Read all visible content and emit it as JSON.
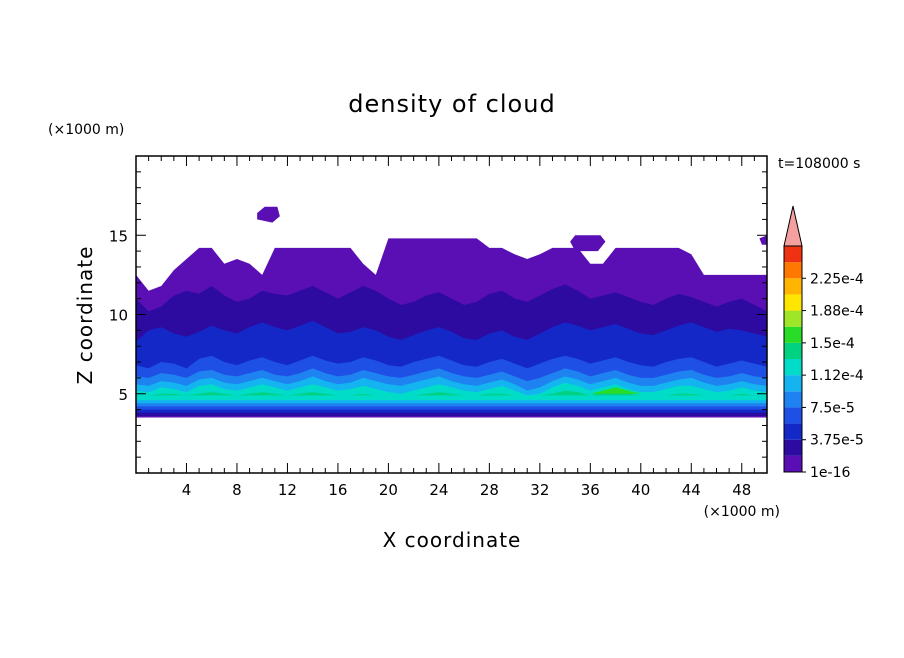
{
  "chart_data": {
    "type": "heatmap",
    "title": "density of cloud",
    "xlabel": "X coordinate",
    "ylabel": "Z coordinate",
    "x_unit": "(×1000 m)",
    "y_unit": "(×1000 m)",
    "time_label": "t=108000 s",
    "xlim": [
      0,
      50
    ],
    "ylim": [
      0,
      20
    ],
    "x_ticks": [
      4,
      8,
      12,
      16,
      20,
      24,
      28,
      32,
      36,
      40,
      44,
      48
    ],
    "y_ticks": [
      5,
      10,
      15
    ],
    "grid": false,
    "colorbar": {
      "levels": [
        1e-16,
        1.875e-05,
        3.75e-05,
        5.625e-05,
        7.5e-05,
        9.375e-05,
        0.0001125,
        0.00013125,
        0.00015,
        0.00016875,
        0.0001875,
        0.00020625,
        0.000225,
        0.00024375
      ],
      "tick_labels": [
        "1e-16",
        "3.75e-5",
        "7.5e-5",
        "1.12e-4",
        "1.5e-4",
        "1.88e-4",
        "2.25e-4"
      ],
      "colors": [
        "#5a0fb4",
        "#2d0aa0",
        "#1428c8",
        "#1e50e6",
        "#1e82f0",
        "#14b4f0",
        "#00dcc8",
        "#00d282",
        "#28dc28",
        "#a0e628",
        "#ffe600",
        "#ffb400",
        "#ff7800",
        "#f03214"
      ],
      "extend_top_color": "#f5a0a0"
    },
    "layers": [
      {
        "level": 0,
        "z_bottom": 3.5,
        "z_top": [
          12.5,
          11.5,
          11.8,
          12.8,
          13.5,
          14.2,
          14.2,
          13.2,
          13.5,
          13.2,
          12.5,
          14.2,
          14.2,
          14.2,
          14.2,
          14.2,
          14.2,
          14.2,
          13.2,
          12.5,
          14.8,
          14.8,
          14.8,
          14.8,
          14.8,
          14.8,
          14.8,
          14.8,
          14.2,
          14.2,
          13.8,
          13.5,
          13.8,
          14.2,
          14.2,
          14.2,
          13.2,
          13.2,
          14.2,
          14.2,
          14.2,
          14.2,
          14.2,
          14.2,
          13.8,
          12.5,
          12.5,
          12.5,
          12.5,
          12.5,
          12.5
        ]
      },
      {
        "level": 1,
        "z_bottom": 3.6,
        "z_top": [
          11.0,
          10.2,
          10.5,
          11.2,
          11.5,
          11.3,
          11.8,
          11.2,
          10.8,
          11.0,
          11.5,
          11.3,
          11.2,
          11.5,
          11.8,
          11.4,
          11.0,
          11.4,
          11.8,
          11.5,
          11.0,
          10.6,
          10.8,
          11.2,
          11.4,
          11.0,
          10.6,
          10.8,
          11.3,
          11.5,
          11.0,
          10.8,
          11.2,
          11.6,
          11.9,
          11.5,
          11.0,
          11.2,
          11.4,
          11.1,
          10.8,
          10.6,
          11.0,
          11.3,
          11.1,
          10.8,
          10.5,
          10.8,
          11.0,
          10.6,
          10.2
        ]
      },
      {
        "level": 2,
        "z_bottom": 3.8,
        "z_top": [
          8.3,
          9.0,
          9.2,
          8.8,
          8.6,
          8.9,
          9.3,
          9.0,
          8.8,
          9.2,
          9.5,
          9.2,
          9.0,
          9.3,
          9.6,
          9.2,
          8.8,
          8.9,
          9.2,
          9.0,
          8.6,
          8.4,
          8.7,
          9.0,
          9.2,
          8.9,
          8.5,
          8.4,
          8.8,
          9.0,
          8.6,
          8.4,
          8.8,
          9.2,
          9.5,
          9.3,
          9.0,
          9.2,
          9.4,
          9.1,
          8.8,
          8.7,
          9.0,
          9.3,
          9.5,
          9.2,
          8.9,
          9.1,
          9.0,
          8.8,
          8.6
        ]
      },
      {
        "level": 3,
        "z_bottom": 4.0,
        "z_top": [
          6.8,
          6.6,
          7.0,
          6.9,
          6.6,
          7.2,
          7.4,
          7.0,
          6.8,
          7.1,
          7.3,
          7.0,
          6.8,
          7.1,
          7.4,
          7.1,
          6.9,
          7.0,
          7.3,
          7.1,
          6.8,
          6.7,
          7.0,
          7.2,
          7.4,
          7.1,
          6.8,
          6.7,
          7.0,
          7.2,
          6.9,
          6.6,
          6.9,
          7.2,
          7.4,
          7.2,
          6.9,
          7.1,
          7.3,
          7.0,
          6.8,
          6.7,
          7.0,
          7.2,
          7.3,
          7.0,
          6.7,
          6.9,
          7.1,
          6.9,
          6.7
        ]
      },
      {
        "level": 4,
        "z_bottom": 4.2,
        "z_top": [
          6.1,
          6.0,
          6.3,
          6.2,
          6.0,
          6.4,
          6.5,
          6.2,
          6.1,
          6.3,
          6.5,
          6.2,
          6.1,
          6.3,
          6.6,
          6.3,
          6.1,
          6.2,
          6.5,
          6.3,
          6.1,
          6.0,
          6.2,
          6.4,
          6.6,
          6.3,
          6.1,
          6.0,
          6.2,
          6.4,
          6.1,
          5.8,
          6.0,
          6.3,
          6.6,
          6.4,
          6.1,
          6.3,
          6.5,
          6.2,
          6.0,
          6.0,
          6.2,
          6.4,
          6.5,
          6.2,
          6.0,
          6.1,
          6.3,
          6.1,
          6.0
        ]
      },
      {
        "level": 5,
        "z_bottom": 4.4,
        "z_top": [
          5.6,
          5.5,
          5.8,
          5.7,
          5.5,
          5.9,
          6.0,
          5.7,
          5.6,
          5.8,
          6.0,
          5.8,
          5.6,
          5.8,
          6.1,
          5.8,
          5.6,
          5.7,
          6.0,
          5.8,
          5.6,
          5.5,
          5.7,
          5.9,
          6.1,
          5.8,
          5.6,
          5.5,
          5.7,
          5.9,
          5.6,
          5.2,
          5.4,
          5.8,
          6.1,
          5.9,
          5.6,
          5.8,
          6.0,
          5.7,
          5.5,
          5.5,
          5.7,
          5.9,
          6.0,
          5.7,
          5.5,
          5.6,
          5.8,
          5.6,
          5.5
        ]
      },
      {
        "level": 6,
        "z_bottom": 4.6,
        "z_top": [
          5.2,
          5.1,
          5.4,
          5.3,
          5.1,
          5.5,
          5.6,
          5.3,
          5.2,
          5.4,
          5.6,
          5.4,
          5.2,
          5.4,
          5.6,
          5.4,
          5.2,
          5.3,
          5.5,
          5.3,
          5.1,
          5.0,
          5.2,
          5.4,
          5.6,
          5.4,
          5.2,
          5.1,
          5.3,
          5.5,
          5.2,
          4.9,
          5.0,
          5.4,
          5.7,
          5.5,
          5.2,
          5.4,
          5.6,
          5.3,
          5.1,
          5.1,
          5.3,
          5.5,
          5.5,
          5.3,
          5.1,
          5.2,
          5.4,
          5.2,
          5.1
        ]
      },
      {
        "level": 7,
        "z_bottom": 4.9,
        "z_top": [
          4.9,
          4.9,
          5.0,
          5.0,
          4.9,
          5.0,
          5.1,
          5.0,
          4.9,
          5.0,
          5.1,
          5.0,
          4.9,
          5.0,
          5.1,
          5.0,
          4.9,
          4.9,
          5.0,
          4.9,
          4.9,
          4.9,
          4.9,
          5.0,
          5.1,
          5.0,
          4.9,
          4.9,
          5.0,
          5.0,
          4.9,
          4.9,
          4.9,
          5.0,
          5.2,
          5.1,
          4.9,
          5.1,
          5.2,
          5.0,
          4.9,
          4.9,
          4.9,
          5.0,
          5.0,
          4.9,
          4.9,
          4.9,
          5.0,
          4.9,
          4.9
        ]
      },
      {
        "level": 8,
        "z_bottom": 5.0,
        "z_top": [
          5.0,
          5.0,
          5.0,
          5.0,
          5.0,
          5.0,
          5.0,
          5.0,
          5.0,
          5.0,
          5.0,
          5.0,
          5.0,
          5.0,
          5.0,
          5.0,
          5.0,
          5.0,
          5.0,
          5.0,
          5.0,
          5.0,
          5.0,
          5.0,
          5.0,
          5.0,
          5.0,
          5.0,
          5.0,
          5.0,
          5.0,
          5.0,
          5.0,
          5.0,
          5.0,
          5.0,
          5.0,
          5.2,
          5.4,
          5.2,
          5.0,
          5.0,
          5.0,
          5.0,
          5.0,
          5.0,
          5.0,
          5.0,
          5.0,
          5.0,
          5.0
        ]
      }
    ],
    "missing_regions": [
      {
        "x": [
          9.6,
          10.2,
          11.2,
          11.4,
          10.8,
          9.6
        ],
        "z": [
          16.4,
          16.8,
          16.8,
          16.2,
          15.8,
          16.0
        ]
      },
      {
        "x": [
          34.8,
          36.8,
          37.2,
          36.6,
          34.8,
          34.4
        ],
        "z": [
          15.0,
          15.0,
          14.6,
          14.0,
          14.0,
          14.6
        ]
      },
      {
        "x": [
          49.4,
          50.0,
          50.0,
          49.6
        ],
        "z": [
          14.8,
          15.0,
          14.4,
          14.4
        ]
      }
    ]
  }
}
